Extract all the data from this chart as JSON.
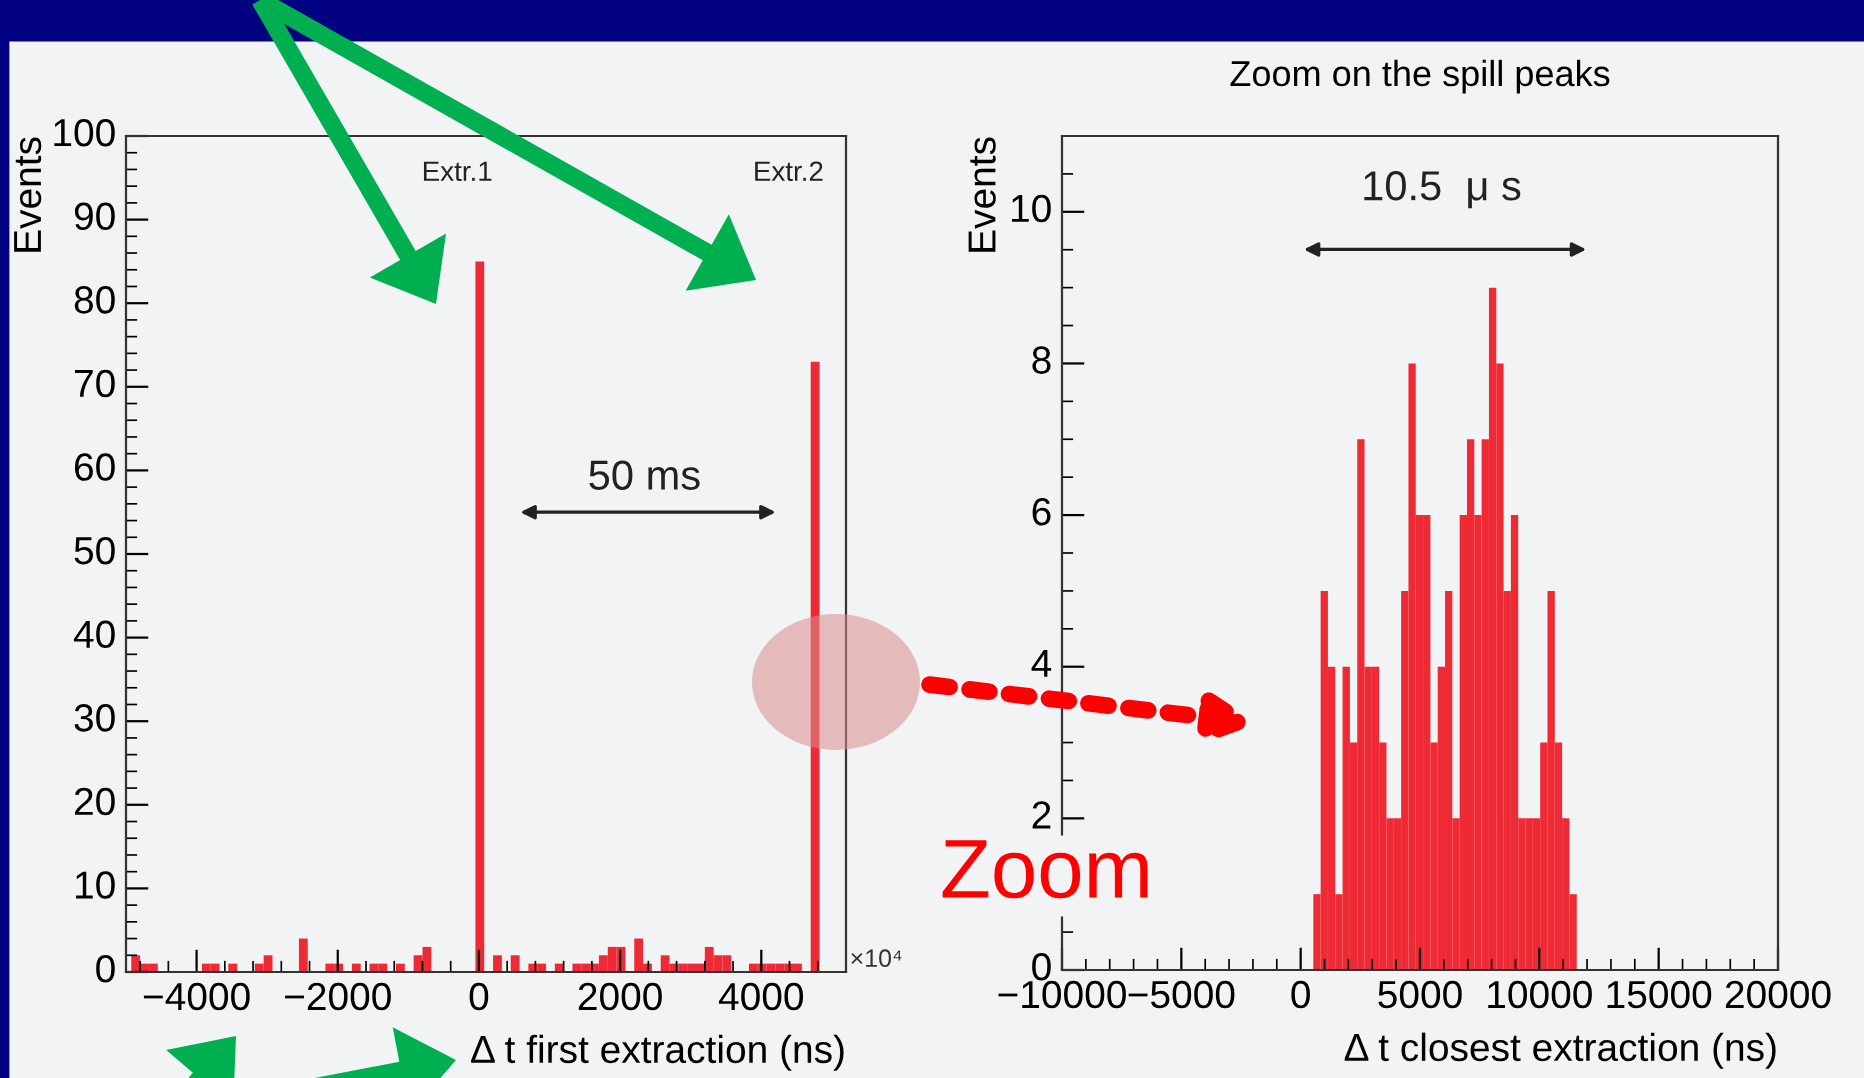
{
  "chart_data": [
    {
      "type": "histogram",
      "xlabel": "Δ t first extraction (ns)",
      "ylabel": "Events",
      "color": "#ee2a35",
      "bins": [
        -4925,
        -4800,
        -4675,
        -4550,
        -4425,
        -4300,
        -4175,
        -4050,
        -3925,
        -3800,
        -3675,
        -3550,
        -3425,
        -3300,
        -3175,
        -3050,
        -2925,
        -2800,
        -2675,
        -2550,
        -2425,
        -2300,
        -2175,
        -2050,
        -1925,
        -1800,
        -1675,
        -1550,
        -1425,
        -1300,
        -1175,
        -1050,
        -925,
        -800,
        -675,
        -550,
        -425,
        -300,
        -175,
        -50,
        75,
        200,
        325,
        450,
        575,
        700,
        825,
        950,
        1075,
        1200,
        1325,
        1450,
        1575,
        1700,
        1825,
        1950,
        2075,
        2200,
        2325,
        2450,
        2575,
        2700,
        2825,
        2950,
        3075,
        3200,
        3325,
        3450,
        3575,
        3700,
        3825,
        3950,
        4075,
        4200,
        4325,
        4450,
        4575,
        4700,
        4825,
        4950,
        5075,
        5200
      ],
      "values": [
        2,
        1,
        1,
        0,
        0,
        0,
        0,
        0,
        1,
        1,
        0,
        1,
        0,
        0,
        1,
        2,
        0,
        0,
        0,
        4,
        0,
        0,
        1,
        1,
        0,
        1,
        0,
        1,
        1,
        0,
        1,
        0,
        2,
        3,
        0,
        0,
        0,
        0,
        0,
        85,
        0,
        2,
        0,
        2,
        0,
        1,
        1,
        0,
        1,
        0,
        1,
        1,
        1,
        2,
        3,
        3,
        0,
        4,
        1,
        0,
        2,
        1,
        1,
        1,
        1,
        3,
        2,
        2,
        0,
        0,
        1,
        1,
        1,
        1,
        1,
        1,
        0,
        73,
        0,
        0,
        0
      ],
      "xlim": [
        -5000,
        5200
      ],
      "xticks": [
        -4000,
        -2000,
        0,
        2000,
        4000
      ],
      "ylim": [
        0,
        100
      ],
      "yticks": [
        0,
        10,
        20,
        30,
        40,
        50,
        60,
        70,
        80,
        90,
        100
      ],
      "grid": false,
      "legend": false,
      "annotations": [
        "Extr.1",
        "Extr.2",
        "50 ms",
        "×10⁴"
      ]
    },
    {
      "type": "histogram",
      "title": "Zoom on the spill peaks",
      "xlabel": "Δ t closest extraction (ns)",
      "ylabel": "Events",
      "color": "#ee2a35",
      "bins": [
        530,
        837,
        1143,
        1450,
        1756,
        2063,
        2370,
        2676,
        2983,
        3289,
        3596,
        3903,
        4209,
        4516,
        4822,
        5129,
        5436,
        5742,
        6049,
        6355,
        6662,
        6969,
        7275,
        7582,
        7888,
        8195,
        8502,
        8808,
        9115,
        9421,
        9728,
        10035,
        10341,
        10648,
        10954,
        11261,
        11568
      ],
      "values": [
        1,
        5,
        4,
        1,
        4,
        3,
        7,
        4,
        4,
        3,
        2,
        2,
        5,
        8,
        6,
        6,
        3,
        4,
        5,
        2,
        6,
        7,
        6,
        7,
        9,
        8,
        5,
        6,
        2,
        2,
        2,
        3,
        5,
        3,
        2,
        1
      ],
      "xlim": [
        -10000,
        20000
      ],
      "xticks": [
        -10000,
        -5000,
        0,
        5000,
        10000,
        15000,
        20000
      ],
      "ylim": [
        0,
        11
      ],
      "yticks": [
        0,
        2,
        4,
        6,
        8,
        10
      ],
      "grid": false,
      "legend": false,
      "annotations": [
        "10.5  μ s",
        "Zoom"
      ]
    }
  ]
}
